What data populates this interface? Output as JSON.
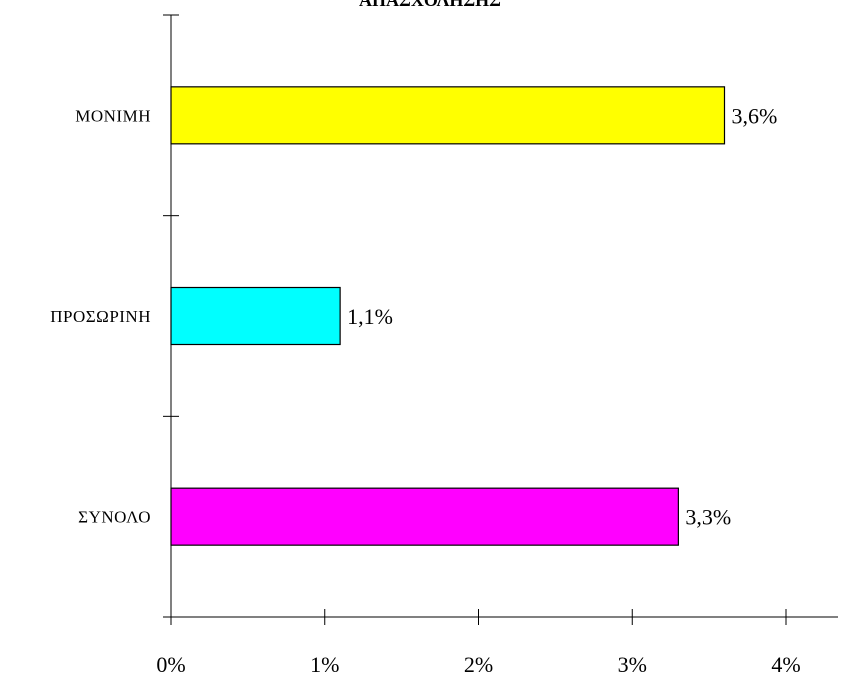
{
  "chart_data": {
    "type": "bar",
    "orientation": "horizontal",
    "title": "ΑΠΑΣΧΟΛΗΣΗΣ",
    "categories": [
      "ΜΟΝΙΜΗ",
      "ΠΡΟΣΩΡΙΝΗ",
      "ΣΥΝΟΛΟ"
    ],
    "values": [
      3.6,
      1.1,
      3.3
    ],
    "value_labels": [
      "3,6%",
      "1,1%",
      "3,3%"
    ],
    "colors": [
      "#ffff00",
      "#00ffff",
      "#ff00ff"
    ],
    "xlim": [
      0,
      4
    ],
    "x_ticks": [
      {
        "value": 0,
        "label": "0%"
      },
      {
        "value": 1,
        "label": "1%"
      },
      {
        "value": 2,
        "label": "2%"
      },
      {
        "value": 3,
        "label": "3%"
      },
      {
        "value": 4,
        "label": "4%"
      }
    ],
    "grid": false,
    "legend": "none"
  }
}
